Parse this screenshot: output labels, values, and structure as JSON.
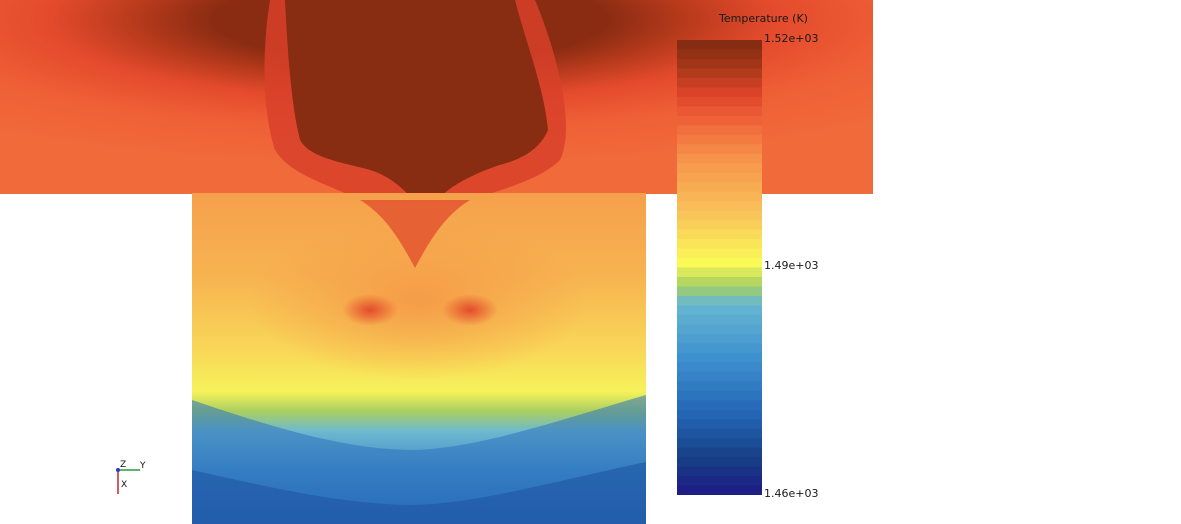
{
  "legend": {
    "title": "Temperature (K)",
    "max_label": "1.52e+03",
    "mid_label": "1.49e+03",
    "min_label": "1.46e+03"
  },
  "colormap": [
    {
      "level": 1.0,
      "color": "#7f2a12"
    },
    {
      "level": 0.94,
      "color": "#a53818"
    },
    {
      "level": 0.88,
      "color": "#e0442a"
    },
    {
      "level": 0.82,
      "color": "#f0643a"
    },
    {
      "level": 0.74,
      "color": "#f6934a"
    },
    {
      "level": 0.62,
      "color": "#f9c25a"
    },
    {
      "level": 0.51,
      "color": "#fafa57"
    },
    {
      "level": 0.46,
      "color": "#a8d060"
    },
    {
      "level": 0.42,
      "color": "#67b8d1"
    },
    {
      "level": 0.3,
      "color": "#3d90cf"
    },
    {
      "level": 0.18,
      "color": "#2466b5"
    },
    {
      "level": 0.08,
      "color": "#173f85"
    },
    {
      "level": 0.0,
      "color": "#1f1a85"
    }
  ],
  "axes_triad": {
    "labels": [
      "Z",
      "Y",
      "X"
    ],
    "colors": {
      "z": "#2b3cc4",
      "y": "#2c9a3a",
      "x": "#c02828"
    }
  }
}
